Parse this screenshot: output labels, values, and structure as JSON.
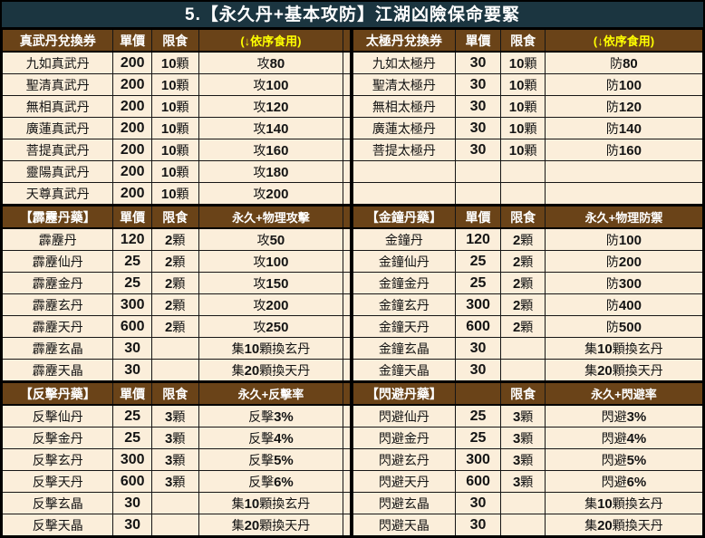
{
  "title": "5.【永久丹+基本攻防】江湖凶險保命要緊",
  "colors": {
    "title_bg": "#1b3540",
    "title_text": "#ffffff",
    "header_bg": "#6a4318",
    "header_text": "#ffffff",
    "highlight_text": "#ffff00",
    "row_bg": "#fbeeda",
    "grid_line": "#161616"
  },
  "table": {
    "sections": [
      {
        "effect_header_yellow": true,
        "left_header": {
          "name": "真武丹兌換券",
          "price": "單價",
          "limit": "限食",
          "effect": "(↓依序食用)"
        },
        "right_header": {
          "name": "太極丹兌換券",
          "price": "單價",
          "limit": "限食",
          "effect": "(↓依序食用)"
        },
        "left_rows": [
          [
            "九如真武丹",
            "200",
            "10顆",
            "攻80"
          ],
          [
            "聖清真武丹",
            "200",
            "10顆",
            "攻100"
          ],
          [
            "無相真武丹",
            "200",
            "10顆",
            "攻120"
          ],
          [
            "廣蓮真武丹",
            "200",
            "10顆",
            "攻140"
          ],
          [
            "菩提真武丹",
            "200",
            "10顆",
            "攻160"
          ],
          [
            "靈陽真武丹",
            "200",
            "10顆",
            "攻180"
          ],
          [
            "天尊真武丹",
            "200",
            "10顆",
            "攻200"
          ]
        ],
        "right_rows": [
          [
            "九如太極丹",
            "30",
            "10顆",
            "防80"
          ],
          [
            "聖清太極丹",
            "30",
            "10顆",
            "防100"
          ],
          [
            "無相太極丹",
            "30",
            "10顆",
            "防120"
          ],
          [
            "廣蓮太極丹",
            "30",
            "10顆",
            "防140"
          ],
          [
            "菩提太極丹",
            "30",
            "10顆",
            "防160"
          ],
          [
            "",
            "",
            "",
            ""
          ],
          [
            "",
            "",
            "",
            ""
          ]
        ]
      },
      {
        "effect_header_yellow": false,
        "left_header": {
          "name": "【霹靂丹藥】",
          "price": "單價",
          "limit": "限食",
          "effect": "永久+物理攻擊"
        },
        "right_header": {
          "name": "【金鐘丹藥】",
          "price": "單價",
          "limit": "限食",
          "effect": "永久+物理防禦"
        },
        "left_rows": [
          [
            "霹靂丹",
            "120",
            "2顆",
            "攻50"
          ],
          [
            "霹靂仙丹",
            "25",
            "2顆",
            "攻100"
          ],
          [
            "霹靂金丹",
            "25",
            "2顆",
            "攻150"
          ],
          [
            "霹靂玄丹",
            "300",
            "2顆",
            "攻200"
          ],
          [
            "霹靂天丹",
            "600",
            "2顆",
            "攻250"
          ],
          [
            "霹靂玄晶",
            "30",
            "",
            "集10顆換玄丹"
          ],
          [
            "霹靂天晶",
            "30",
            "",
            "集20顆換天丹"
          ]
        ],
        "right_rows": [
          [
            "金鐘丹",
            "120",
            "2顆",
            "防100"
          ],
          [
            "金鐘仙丹",
            "25",
            "2顆",
            "防200"
          ],
          [
            "金鐘金丹",
            "25",
            "2顆",
            "防300"
          ],
          [
            "金鐘玄丹",
            "300",
            "2顆",
            "防400"
          ],
          [
            "金鐘天丹",
            "600",
            "2顆",
            "防500"
          ],
          [
            "金鐘玄晶",
            "30",
            "",
            "集10顆換玄丹"
          ],
          [
            "金鐘天晶",
            "30",
            "",
            "集20顆換天丹"
          ]
        ]
      },
      {
        "effect_header_yellow": false,
        "left_header": {
          "name": "【反擊丹藥】",
          "price": "單價",
          "limit": "限食",
          "effect": "永久+反擊率"
        },
        "right_header": {
          "name": "【閃避丹藥】",
          "price": "",
          "limit": "限食",
          "effect": "永久+閃避率"
        },
        "left_rows": [
          [
            "反擊仙丹",
            "25",
            "3顆",
            "反擊3%"
          ],
          [
            "反擊金丹",
            "25",
            "3顆",
            "反擊4%"
          ],
          [
            "反擊玄丹",
            "300",
            "3顆",
            "反擊5%"
          ],
          [
            "反擊天丹",
            "600",
            "3顆",
            "反擊6%"
          ],
          [
            "反擊玄晶",
            "30",
            "",
            "集10顆換玄丹"
          ],
          [
            "反擊天晶",
            "30",
            "",
            "集20顆換天丹"
          ]
        ],
        "right_rows": [
          [
            "閃避仙丹",
            "25",
            "3顆",
            "閃避3%"
          ],
          [
            "閃避金丹",
            "25",
            "3顆",
            "閃避4%"
          ],
          [
            "閃避玄丹",
            "300",
            "3顆",
            "閃避5%"
          ],
          [
            "閃避天丹",
            "600",
            "3顆",
            "閃避6%"
          ],
          [
            "閃避玄晶",
            "30",
            "",
            "集10顆換玄丹"
          ],
          [
            "閃避天晶",
            "30",
            "",
            "集20顆換天丹"
          ]
        ]
      }
    ]
  }
}
